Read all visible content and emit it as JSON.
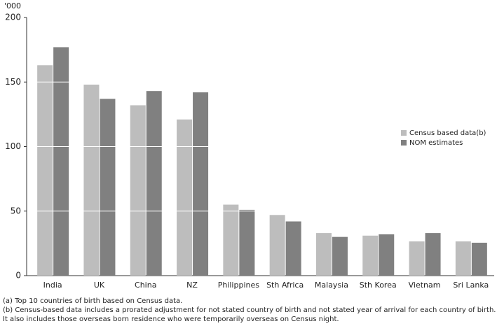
{
  "chart_data": {
    "type": "bar",
    "y_unit_label": "'000",
    "categories": [
      "India",
      "UK",
      "China",
      "NZ",
      "Philippines",
      "Sth Africa",
      "Malaysia",
      "Sth Korea",
      "Vietnam",
      "Sri Lanka"
    ],
    "series": [
      {
        "name": "Census based data(b)",
        "color": "#bdbdbd",
        "values": [
          163,
          148,
          132,
          121,
          55,
          47,
          33,
          31,
          26.5,
          26.5
        ]
      },
      {
        "name": "NOM estimates",
        "color": "#808080",
        "values": [
          177,
          137,
          143,
          142,
          51,
          42,
          30,
          32,
          33,
          25.5
        ]
      }
    ],
    "ylim": [
      0,
      200
    ],
    "yticks": [
      0,
      50,
      100,
      150,
      200
    ],
    "grid": true,
    "grid_color": "#ffffff",
    "legend_position": "right",
    "footnotes": [
      "(a) Top 10 countries of birth based on Census data.",
      "(b) Census-based data includes a prorated adjustment for not stated country of birth and not stated year of arrival for each country of birth.",
      "It also includes those overseas born residence who were temporarily overseas on Census night."
    ]
  }
}
